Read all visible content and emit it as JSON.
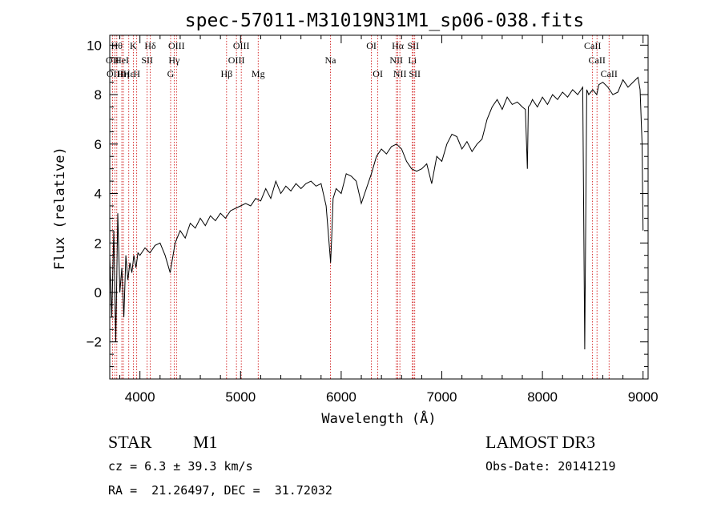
{
  "chart_data": {
    "type": "line",
    "title": "spec-57011-M31019N31M1_sp06-038.fits",
    "xlabel": "Wavelength (Å)",
    "ylabel": "Flux (relative)",
    "xlim": [
      3700,
      9050
    ],
    "ylim": [
      -3.5,
      10.4
    ],
    "xticks": [
      4000,
      5000,
      6000,
      7000,
      8000,
      9000
    ],
    "yticks": [
      -2,
      0,
      2,
      4,
      6,
      8,
      10
    ],
    "series": [
      {
        "name": "flux",
        "x": [
          3700,
          3720,
          3740,
          3760,
          3780,
          3800,
          3820,
          3840,
          3860,
          3880,
          3900,
          3920,
          3940,
          3960,
          3980,
          4000,
          4050,
          4100,
          4150,
          4200,
          4250,
          4300,
          4350,
          4400,
          4450,
          4500,
          4550,
          4600,
          4650,
          4700,
          4750,
          4800,
          4850,
          4900,
          4950,
          5000,
          5050,
          5100,
          5150,
          5200,
          5250,
          5300,
          5350,
          5400,
          5450,
          5500,
          5550,
          5600,
          5650,
          5700,
          5750,
          5800,
          5850,
          5880,
          5895,
          5905,
          5920,
          5950,
          6000,
          6050,
          6100,
          6150,
          6200,
          6250,
          6300,
          6350,
          6400,
          6450,
          6500,
          6550,
          6600,
          6650,
          6700,
          6750,
          6800,
          6850,
          6900,
          6950,
          7000,
          7050,
          7100,
          7150,
          7200,
          7250,
          7300,
          7350,
          7400,
          7450,
          7500,
          7550,
          7600,
          7650,
          7700,
          7750,
          7800,
          7830,
          7850,
          7860,
          7880,
          7900,
          7950,
          8000,
          8050,
          8100,
          8150,
          8200,
          8250,
          8300,
          8350,
          8400,
          8420,
          8440,
          8460,
          8500,
          8540,
          8560,
          8600,
          8650,
          8700,
          8750,
          8800,
          8850,
          8900,
          8950,
          8970,
          8990,
          9000
        ],
        "y": [
          1.5,
          -1.0,
          2.5,
          -2.0,
          3.2,
          0.0,
          1.0,
          -1.0,
          1.5,
          0.5,
          1.2,
          0.8,
          1.5,
          1.0,
          1.6,
          1.5,
          1.8,
          1.6,
          1.9,
          2.0,
          1.5,
          0.8,
          2.0,
          2.5,
          2.2,
          2.8,
          2.6,
          3.0,
          2.7,
          3.1,
          2.9,
          3.2,
          3.0,
          3.3,
          3.4,
          3.5,
          3.6,
          3.5,
          3.8,
          3.7,
          4.2,
          3.8,
          4.5,
          4.0,
          4.3,
          4.1,
          4.4,
          4.2,
          4.4,
          4.5,
          4.3,
          4.4,
          3.5,
          2.0,
          1.2,
          2.2,
          3.8,
          4.2,
          4.0,
          4.8,
          4.7,
          4.5,
          3.6,
          4.2,
          4.8,
          5.5,
          5.8,
          5.6,
          5.9,
          6.0,
          5.8,
          5.3,
          5.0,
          4.9,
          5.0,
          5.2,
          4.4,
          5.5,
          5.3,
          6.0,
          6.4,
          6.3,
          5.8,
          6.1,
          5.7,
          6.0,
          6.2,
          7.0,
          7.5,
          7.8,
          7.4,
          7.9,
          7.6,
          7.7,
          7.5,
          7.4,
          5.0,
          7.5,
          7.6,
          7.8,
          7.5,
          7.9,
          7.6,
          8.0,
          7.8,
          8.1,
          7.9,
          8.2,
          8.0,
          8.3,
          -2.3,
          8.2,
          8.0,
          8.2,
          8.0,
          8.4,
          8.5,
          8.3,
          8.0,
          8.1,
          8.6,
          8.3,
          8.5,
          8.7,
          8.2,
          6.0,
          2.5
        ]
      }
    ],
    "line_markers": [
      {
        "wavelength": 3727,
        "label": "OII",
        "row": 1
      },
      {
        "wavelength": 3750,
        "label": "OIII",
        "row": 2
      },
      {
        "wavelength": 3770,
        "label": "Hθ",
        "row": 0
      },
      {
        "wavelength": 3820,
        "label": "HeI",
        "row": 1
      },
      {
        "wavelength": 3835,
        "label": "Hη",
        "row": 2
      },
      {
        "wavelength": 3889,
        "label": "Hε",
        "row": 2
      },
      {
        "wavelength": 3934,
        "label": "K",
        "row": 0
      },
      {
        "wavelength": 3968,
        "label": "H",
        "row": 2
      },
      {
        "wavelength": 4072,
        "label": "SII",
        "row": 1
      },
      {
        "wavelength": 4102,
        "label": "Hδ",
        "row": 0
      },
      {
        "wavelength": 4305,
        "label": "G",
        "row": 2
      },
      {
        "wavelength": 4340,
        "label": "Hγ",
        "row": 1
      },
      {
        "wavelength": 4363,
        "label": "OIII",
        "row": 0
      },
      {
        "wavelength": 4861,
        "label": "Hβ",
        "row": 2
      },
      {
        "wavelength": 4959,
        "label": "OIII",
        "row": 1
      },
      {
        "wavelength": 5007,
        "label": "OIII",
        "row": 0
      },
      {
        "wavelength": 5175,
        "label": "Mg",
        "row": 2
      },
      {
        "wavelength": 5893,
        "label": "Na",
        "row": 1
      },
      {
        "wavelength": 6300,
        "label": "OI",
        "row": 0
      },
      {
        "wavelength": 6364,
        "label": "OI",
        "row": 2
      },
      {
        "wavelength": 6548,
        "label": "NII",
        "row": 1
      },
      {
        "wavelength": 6563,
        "label": "Hα",
        "row": 0
      },
      {
        "wavelength": 6583,
        "label": "NII",
        "row": 2
      },
      {
        "wavelength": 6707,
        "label": "Li",
        "row": 1
      },
      {
        "wavelength": 6716,
        "label": "SII",
        "row": 0
      },
      {
        "wavelength": 6731,
        "label": "SII",
        "row": 2
      },
      {
        "wavelength": 8498,
        "label": "CaII",
        "row": 0
      },
      {
        "wavelength": 8542,
        "label": "CaII",
        "row": 1
      },
      {
        "wavelength": 8662,
        "label": "CaII",
        "row": 2
      }
    ]
  },
  "info": {
    "class": "STAR",
    "subclass": "M1",
    "survey": "LAMOST DR3",
    "cz": "cz = 6.3 ± 39.3 km/s",
    "obs_date": "Obs-Date: 20141219",
    "coords": "RA =  21.26497, DEC =  31.72032"
  },
  "colors": {
    "axes": "#000000",
    "flux_line": "#000000",
    "marker_line": "#cc0000"
  }
}
